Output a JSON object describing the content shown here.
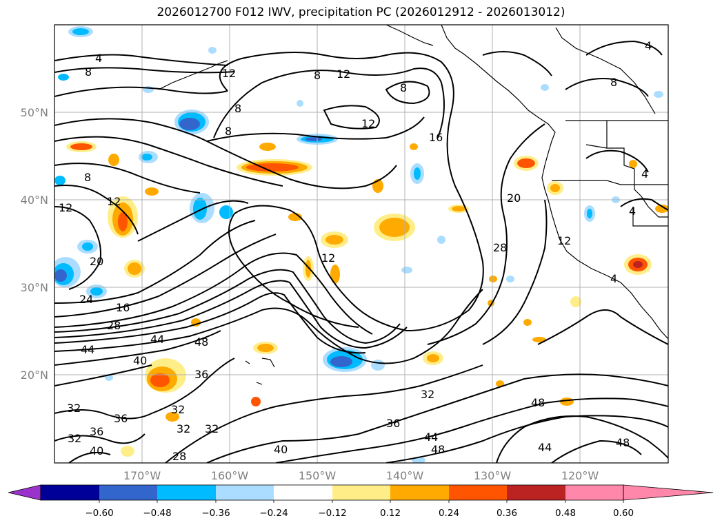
{
  "map": {
    "title": "2026012700 F012 IWV, precipitation PC (2026012912 - 2026013012)",
    "lat_labels": [
      "50°N",
      "40°N",
      "30°N",
      "20°N"
    ],
    "lon_labels": [
      "170°W",
      "160°W",
      "150°W",
      "140°W",
      "130°W",
      "120°W"
    ],
    "colorbar": {
      "colors": [
        "#9933cc",
        "#000099",
        "#3366cc",
        "#00bbff",
        "#aaddff",
        "#ffffff",
        "#ffee88",
        "#ffaa00",
        "#ff5500",
        "#bb2222",
        "#ff88aa"
      ],
      "tick_labels": [
        "−0.60",
        "−0.48",
        "−0.36",
        "−0.24",
        "−0.12",
        "0.12",
        "0.24",
        "0.36",
        "0.48",
        "0.60"
      ]
    },
    "contour_labels": [
      {
        "text": "4"
      },
      {
        "text": "8"
      },
      {
        "text": "12"
      },
      {
        "text": "8"
      },
      {
        "text": "12"
      },
      {
        "text": "8"
      },
      {
        "text": "8"
      },
      {
        "text": "12"
      },
      {
        "text": "16"
      },
      {
        "text": "8"
      },
      {
        "text": "8"
      },
      {
        "text": "4"
      },
      {
        "text": "8"
      },
      {
        "text": "12"
      },
      {
        "text": "12"
      },
      {
        "text": "20"
      },
      {
        "text": "20"
      },
      {
        "text": "28"
      },
      {
        "text": "12"
      },
      {
        "text": "24"
      },
      {
        "text": "16"
      },
      {
        "text": "28"
      },
      {
        "text": "44"
      },
      {
        "text": "48"
      },
      {
        "text": "44"
      },
      {
        "text": "40"
      },
      {
        "text": "36"
      },
      {
        "text": "32"
      },
      {
        "text": "32"
      },
      {
        "text": "36"
      },
      {
        "text": "32"
      },
      {
        "text": "32"
      },
      {
        "text": "36"
      },
      {
        "text": "32"
      },
      {
        "text": "28"
      },
      {
        "text": "40"
      },
      {
        "text": "40"
      },
      {
        "text": "32"
      },
      {
        "text": "36"
      },
      {
        "text": "44"
      },
      {
        "text": "48"
      },
      {
        "text": "48"
      },
      {
        "text": "44"
      },
      {
        "text": "48"
      },
      {
        "text": "4"
      },
      {
        "text": "4"
      },
      {
        "text": "12"
      },
      {
        "text": "4"
      }
    ]
  }
}
